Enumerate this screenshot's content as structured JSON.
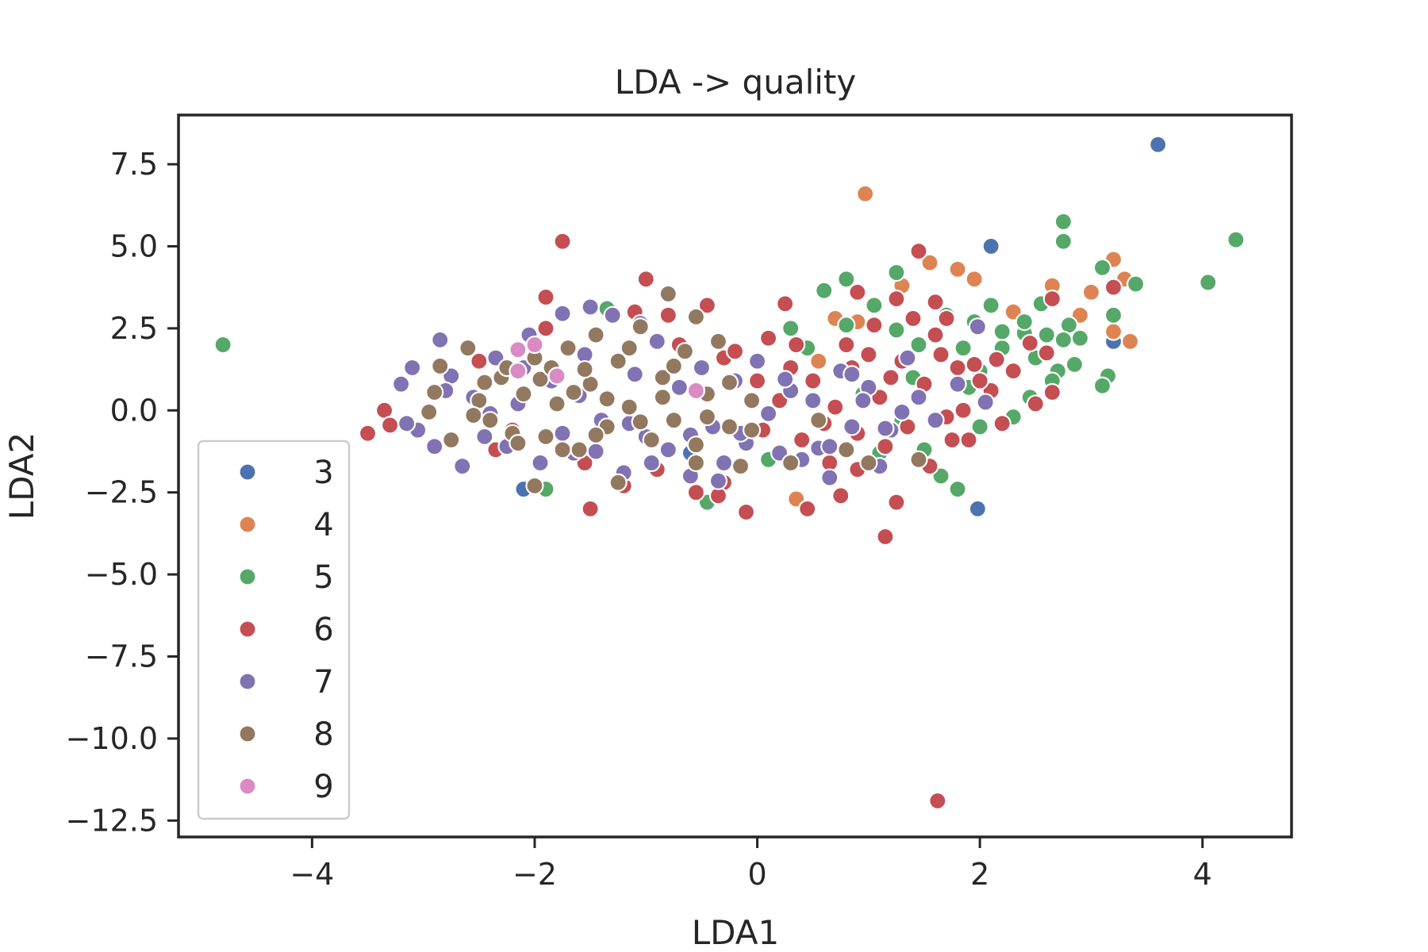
{
  "chart_data": {
    "type": "scatter",
    "title": "LDA -> quality",
    "xlabel": "LDA1",
    "ylabel": "LDA2",
    "xlim": [
      -5.2,
      4.8
    ],
    "ylim": [
      -13.0,
      9.0
    ],
    "xticks": [
      {
        "value": -4,
        "label": "−4"
      },
      {
        "value": -2,
        "label": "−2"
      },
      {
        "value": 0,
        "label": "0"
      },
      {
        "value": 2,
        "label": "2"
      },
      {
        "value": 4,
        "label": "4"
      }
    ],
    "yticks": [
      {
        "value": 7.5,
        "label": "7.5"
      },
      {
        "value": 5.0,
        "label": "5.0"
      },
      {
        "value": 2.5,
        "label": "2.5"
      },
      {
        "value": 0.0,
        "label": "0.0"
      },
      {
        "value": -2.5,
        "label": "−2.5"
      },
      {
        "value": -5.0,
        "label": "−5.0"
      },
      {
        "value": -7.5,
        "label": "−7.5"
      },
      {
        "value": -10.0,
        "label": "−10.0"
      },
      {
        "value": -12.5,
        "label": "−12.5"
      }
    ],
    "grid": false,
    "legend_position": "lower-left",
    "series": [
      {
        "name": "3",
        "color": "#4C72B0",
        "points": [
          [
            3.6,
            8.1
          ],
          [
            2.1,
            5.0
          ],
          [
            -2.1,
            -2.4
          ],
          [
            1.98,
            -3.0
          ],
          [
            3.2,
            2.1
          ],
          [
            -0.6,
            -1.3
          ]
        ]
      },
      {
        "name": "4",
        "color": "#DD8452",
        "points": [
          [
            0.97,
            6.6
          ],
          [
            1.8,
            4.3
          ],
          [
            1.95,
            4.0
          ],
          [
            3.2,
            4.6
          ],
          [
            3.35,
            2.1
          ],
          [
            3.3,
            4.0
          ],
          [
            1.55,
            4.5
          ],
          [
            0.7,
            2.8
          ],
          [
            0.9,
            2.7
          ],
          [
            2.65,
            3.8
          ],
          [
            3.0,
            3.6
          ],
          [
            3.2,
            2.4
          ],
          [
            1.3,
            3.8
          ],
          [
            2.3,
            3.0
          ],
          [
            0.35,
            -2.7
          ],
          [
            0.55,
            1.5
          ],
          [
            2.9,
            2.9
          ]
        ]
      },
      {
        "name": "5",
        "color": "#55A868",
        "points": [
          [
            -4.8,
            2.0
          ],
          [
            4.3,
            5.2
          ],
          [
            4.05,
            3.9
          ],
          [
            2.75,
            5.75
          ],
          [
            2.75,
            5.15
          ],
          [
            3.1,
            4.35
          ],
          [
            3.4,
            3.85
          ],
          [
            1.25,
            4.2
          ],
          [
            0.8,
            4.0
          ],
          [
            0.6,
            3.65
          ],
          [
            3.15,
            1.05
          ],
          [
            3.1,
            0.75
          ],
          [
            2.85,
            1.4
          ],
          [
            1.8,
            -2.4
          ],
          [
            -1.9,
            -2.4
          ],
          [
            -1.35,
            3.1
          ],
          [
            3.2,
            2.9
          ],
          [
            2.8,
            2.6
          ],
          [
            2.6,
            2.3
          ],
          [
            2.4,
            2.35
          ],
          [
            2.5,
            1.6
          ],
          [
            2.1,
            3.2
          ],
          [
            1.95,
            2.7
          ],
          [
            2.2,
            1.9
          ],
          [
            2.0,
            1.2
          ],
          [
            2.45,
            0.4
          ],
          [
            2.7,
            1.2
          ],
          [
            2.9,
            2.2
          ],
          [
            1.7,
            2.9
          ],
          [
            1.6,
            2.3
          ],
          [
            1.45,
            2.0
          ],
          [
            1.25,
            2.45
          ],
          [
            1.05,
            3.2
          ],
          [
            0.8,
            2.6
          ],
          [
            0.3,
            2.5
          ],
          [
            0.45,
            1.9
          ],
          [
            0.75,
            1.2
          ],
          [
            1.5,
            -1.2
          ],
          [
            1.65,
            -2.0
          ],
          [
            2.0,
            -0.5
          ],
          [
            2.3,
            -0.2
          ],
          [
            2.65,
            0.9
          ],
          [
            2.2,
            2.4
          ],
          [
            2.55,
            3.25
          ],
          [
            1.9,
            0.7
          ],
          [
            1.4,
            1.0
          ],
          [
            1.3,
            -0.3
          ],
          [
            1.1,
            -1.3
          ],
          [
            0.95,
            0.5
          ],
          [
            2.75,
            2.15
          ],
          [
            2.4,
            2.7
          ],
          [
            1.85,
            1.9
          ],
          [
            -0.45,
            -2.8
          ],
          [
            0.1,
            -1.5
          ]
        ]
      },
      {
        "name": "6",
        "color": "#C44E52",
        "points": [
          [
            1.62,
            -11.9
          ],
          [
            -1.75,
            5.15
          ],
          [
            -3.5,
            -0.7
          ],
          [
            -3.35,
            0.0
          ],
          [
            -3.3,
            -0.45
          ],
          [
            -1.5,
            -3.0
          ],
          [
            -1.2,
            -2.3
          ],
          [
            -0.1,
            -3.1
          ],
          [
            0.45,
            -3.0
          ],
          [
            1.15,
            -3.85
          ],
          [
            1.25,
            -2.8
          ],
          [
            0.75,
            -2.6
          ],
          [
            -1.9,
            3.45
          ],
          [
            -1.0,
            4.0
          ],
          [
            -0.45,
            3.2
          ],
          [
            1.45,
            4.85
          ],
          [
            0.25,
            3.25
          ],
          [
            1.6,
            3.3
          ],
          [
            0.9,
            3.6
          ],
          [
            1.7,
            2.8
          ],
          [
            2.65,
            3.4
          ],
          [
            3.2,
            3.75
          ],
          [
            -0.3,
            -2.2
          ],
          [
            -0.9,
            -1.8
          ],
          [
            -1.55,
            -1.6
          ],
          [
            -1.9,
            2.5
          ],
          [
            -2.2,
            -0.6
          ],
          [
            -2.5,
            1.5
          ],
          [
            -0.8,
            2.9
          ],
          [
            -0.3,
            1.6
          ],
          [
            0.1,
            2.2
          ],
          [
            0.3,
            1.3
          ],
          [
            0.5,
            0.9
          ],
          [
            0.7,
            0.1
          ],
          [
            0.9,
            -0.7
          ],
          [
            1.1,
            0.4
          ],
          [
            1.3,
            1.5
          ],
          [
            1.5,
            0.8
          ],
          [
            1.7,
            -0.2
          ],
          [
            1.9,
            -0.9
          ],
          [
            2.1,
            0.6
          ],
          [
            2.3,
            1.2
          ],
          [
            2.5,
            0.2
          ],
          [
            2.65,
            0.55
          ],
          [
            2.6,
            1.75
          ],
          [
            2.45,
            2.05
          ],
          [
            2.2,
            -0.4
          ],
          [
            1.8,
            1.3
          ],
          [
            1.6,
            2.3
          ],
          [
            1.4,
            2.8
          ],
          [
            1.2,
            1.0
          ],
          [
            1.0,
            1.7
          ],
          [
            0.8,
            2.0
          ],
          [
            0.6,
            -0.4
          ],
          [
            0.4,
            -0.9
          ],
          [
            0.2,
            0.3
          ],
          [
            0.0,
            0.9
          ],
          [
            -0.2,
            1.8
          ],
          [
            0.65,
            -1.6
          ],
          [
            0.9,
            -1.8
          ],
          [
            1.15,
            -1.1
          ],
          [
            1.35,
            -0.5
          ],
          [
            1.55,
            -1.7
          ],
          [
            1.75,
            -0.9
          ],
          [
            1.95,
            1.4
          ],
          [
            2.15,
            1.55
          ],
          [
            0.35,
            2.0
          ],
          [
            0.05,
            -0.6
          ],
          [
            1.05,
            2.6
          ],
          [
            1.25,
            3.4
          ],
          [
            0.85,
            1.3
          ],
          [
            2.0,
            0.9
          ],
          [
            1.65,
            1.7
          ],
          [
            1.85,
            0.0
          ],
          [
            -0.7,
            2.0
          ],
          [
            -1.1,
            3.0
          ],
          [
            -0.55,
            -2.5
          ],
          [
            -2.35,
            -1.2
          ],
          [
            -0.35,
            -2.6
          ]
        ]
      },
      {
        "name": "7",
        "color": "#8172B3",
        "points": [
          [
            -3.2,
            0.8
          ],
          [
            -3.1,
            1.3
          ],
          [
            -3.05,
            -0.6
          ],
          [
            -2.95,
            0.0
          ],
          [
            -2.85,
            2.15
          ],
          [
            -2.75,
            1.05
          ],
          [
            -2.65,
            -1.7
          ],
          [
            -2.55,
            0.4
          ],
          [
            -2.45,
            -0.8
          ],
          [
            -2.35,
            1.6
          ],
          [
            -2.25,
            -1.1
          ],
          [
            -2.15,
            0.2
          ],
          [
            -2.05,
            2.3
          ],
          [
            -1.95,
            -1.6
          ],
          [
            -1.85,
            0.9
          ],
          [
            -1.75,
            2.95
          ],
          [
            -1.65,
            -1.3
          ],
          [
            -1.55,
            1.7
          ],
          [
            -1.5,
            3.15
          ],
          [
            -1.4,
            -0.3
          ],
          [
            -1.3,
            2.9
          ],
          [
            -1.2,
            -1.9
          ],
          [
            -1.1,
            1.1
          ],
          [
            -1.0,
            -0.8
          ],
          [
            -0.9,
            2.1
          ],
          [
            -0.8,
            -1.2
          ],
          [
            -0.7,
            0.7
          ],
          [
            -0.6,
            -2.0
          ],
          [
            -0.5,
            1.3
          ],
          [
            -0.4,
            -0.5
          ],
          [
            -0.3,
            -1.6
          ],
          [
            -0.2,
            0.9
          ],
          [
            -0.1,
            -1.0
          ],
          [
            0.0,
            1.5
          ],
          [
            0.1,
            -0.1
          ],
          [
            0.2,
            -1.3
          ],
          [
            0.3,
            0.6
          ],
          [
            0.4,
            -1.5
          ],
          [
            0.5,
            0.3
          ],
          [
            0.65,
            -2.05
          ],
          [
            0.75,
            1.2
          ],
          [
            0.85,
            -0.5
          ],
          [
            1.0,
            0.7
          ],
          [
            1.1,
            -1.7
          ],
          [
            1.2,
            -0.6
          ],
          [
            1.35,
            1.6
          ],
          [
            1.45,
            0.4
          ],
          [
            1.6,
            -0.3
          ],
          [
            1.8,
            0.8
          ],
          [
            1.98,
            2.55
          ],
          [
            2.05,
            0.25
          ],
          [
            0.95,
            0.3
          ],
          [
            -2.9,
            -1.1
          ],
          [
            -1.05,
            2.65
          ],
          [
            0.55,
            -1.15
          ],
          [
            -0.35,
            -2.15
          ],
          [
            -0.95,
            -1.6
          ],
          [
            -1.35,
            0.3
          ],
          [
            -1.75,
            -0.7
          ],
          [
            -2.6,
            1.9
          ],
          [
            -2.1,
            1.3
          ],
          [
            -0.05,
            0.3
          ],
          [
            0.25,
            0.95
          ],
          [
            0.65,
            -1.1
          ],
          [
            1.3,
            -0.05
          ],
          [
            -0.6,
            -0.75
          ],
          [
            -1.15,
            -0.4
          ],
          [
            -1.6,
            0.45
          ],
          [
            -2.4,
            -0.1
          ],
          [
            -2.8,
            0.6
          ],
          [
            -3.15,
            -0.4
          ],
          [
            0.85,
            1.1
          ],
          [
            -0.15,
            -0.7
          ],
          [
            -1.45,
            -1.25
          ],
          [
            1.15,
            -0.55
          ]
        ]
      },
      {
        "name": "8",
        "color": "#937860",
        "points": [
          [
            -2.0,
            -2.3
          ],
          [
            -0.8,
            3.55
          ],
          [
            -0.55,
            2.85
          ],
          [
            -2.9,
            0.55
          ],
          [
            -2.75,
            -0.9
          ],
          [
            -2.6,
            1.9
          ],
          [
            -2.5,
            0.3
          ],
          [
            -2.4,
            -0.3
          ],
          [
            -2.3,
            1.0
          ],
          [
            -2.2,
            -0.7
          ],
          [
            -2.1,
            0.5
          ],
          [
            -2.0,
            1.6
          ],
          [
            -1.9,
            -0.8
          ],
          [
            -1.8,
            0.2
          ],
          [
            -1.7,
            1.9
          ],
          [
            -1.6,
            -1.2
          ],
          [
            -1.5,
            0.8
          ],
          [
            -1.45,
            2.3
          ],
          [
            -1.35,
            -0.5
          ],
          [
            -1.25,
            1.5
          ],
          [
            -1.15,
            0.1
          ],
          [
            -1.05,
            2.55
          ],
          [
            -0.95,
            -0.9
          ],
          [
            -0.85,
            1.0
          ],
          [
            -0.75,
            -0.3
          ],
          [
            -0.65,
            1.8
          ],
          [
            -0.55,
            -1.6
          ],
          [
            -0.45,
            0.5
          ],
          [
            -0.35,
            2.1
          ],
          [
            -0.25,
            -0.5
          ],
          [
            -0.15,
            -1.7
          ],
          [
            -0.05,
            0.3
          ],
          [
            0.3,
            -1.6
          ],
          [
            0.55,
            -0.3
          ],
          [
            0.8,
            -1.2
          ],
          [
            1.0,
            -1.6
          ],
          [
            1.45,
            -1.5
          ],
          [
            -1.25,
            -2.2
          ],
          [
            -0.55,
            -1.05
          ],
          [
            -1.75,
            -1.2
          ],
          [
            -2.85,
            1.35
          ],
          [
            -2.95,
            -0.05
          ],
          [
            -2.25,
            1.3
          ],
          [
            -1.95,
            0.95
          ],
          [
            -1.55,
            1.25
          ],
          [
            -1.15,
            1.9
          ],
          [
            -0.85,
            0.4
          ],
          [
            -0.45,
            -0.2
          ],
          [
            -0.05,
            -0.6
          ],
          [
            -1.65,
            0.55
          ],
          [
            -2.45,
            0.85
          ],
          [
            -0.75,
            1.35
          ],
          [
            -1.35,
            0.35
          ],
          [
            -1.05,
            -0.35
          ],
          [
            -2.15,
            -1.0
          ],
          [
            -1.45,
            -0.75
          ],
          [
            -0.25,
            0.85
          ],
          [
            -2.55,
            -0.15
          ],
          [
            -1.85,
            1.3
          ]
        ]
      },
      {
        "name": "9",
        "color": "#DA8BC3",
        "points": [
          [
            -2.15,
            1.85
          ],
          [
            -2.0,
            2.0
          ],
          [
            -2.15,
            1.2
          ],
          [
            -1.8,
            1.05
          ],
          [
            -0.55,
            0.6
          ]
        ]
      }
    ]
  }
}
